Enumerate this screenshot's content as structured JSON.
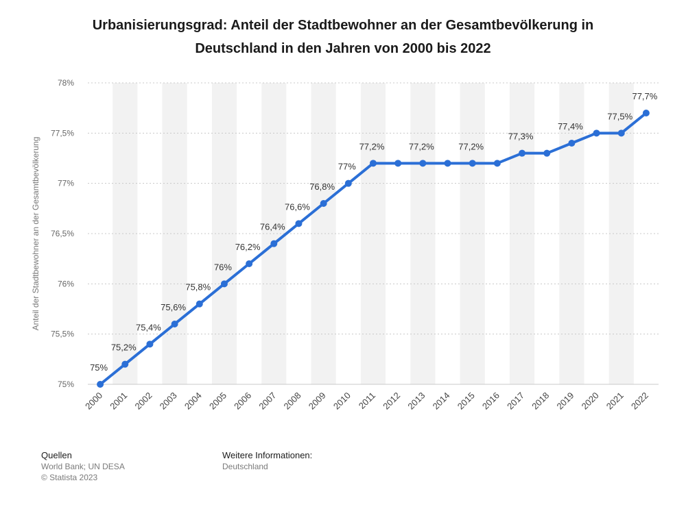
{
  "title": {
    "line1": "Urbanisierungsgrad: Anteil der Stadtbewohner an der Gesamtbevölkerung in",
    "line2": "Deutschland in den Jahren von 2000 bis 2022"
  },
  "footer": {
    "sources_heading": "Quellen",
    "sources_text": "World Bank; UN DESA",
    "copyright": "© Statista 2023",
    "info_heading": "Weitere Informationen:",
    "info_text": "Deutschland"
  },
  "colors": {
    "line": "#2b6fd6",
    "band": "#f2f2f2",
    "grid": "#c8c8c8"
  },
  "chart_data": {
    "type": "line",
    "ylabel": "Anteil der Stadtbewohner an der Gesamtbevölkerung",
    "ylim": [
      75,
      78
    ],
    "y_ticks": [
      "75%",
      "75,5%",
      "76%",
      "76,5%",
      "77%",
      "77,5%",
      "78%"
    ],
    "grid": true,
    "categories": [
      "2000",
      "2001",
      "2002",
      "2003",
      "2004",
      "2005",
      "2006",
      "2007",
      "2008",
      "2009",
      "2010",
      "2011",
      "2012",
      "2013",
      "2014",
      "2015",
      "2016",
      "2017",
      "2018",
      "2019",
      "2020",
      "2021",
      "2022"
    ],
    "values": [
      75.0,
      75.2,
      75.4,
      75.6,
      75.8,
      76.0,
      76.2,
      76.4,
      76.6,
      76.8,
      77.0,
      77.2,
      77.2,
      77.2,
      77.2,
      77.2,
      77.2,
      77.3,
      77.3,
      77.4,
      77.5,
      77.5,
      77.7
    ],
    "data_labels": [
      "75%",
      "75,2%",
      "75,4%",
      "75,6%",
      "75,8%",
      "76%",
      "76,2%",
      "76,4%",
      "76,6%",
      "76,8%",
      "77%",
      "77,2%",
      "",
      "77,2%",
      "",
      "77,2%",
      "",
      "77,3%",
      "",
      "77,4%",
      "",
      "77,5%",
      "77,7%"
    ]
  }
}
